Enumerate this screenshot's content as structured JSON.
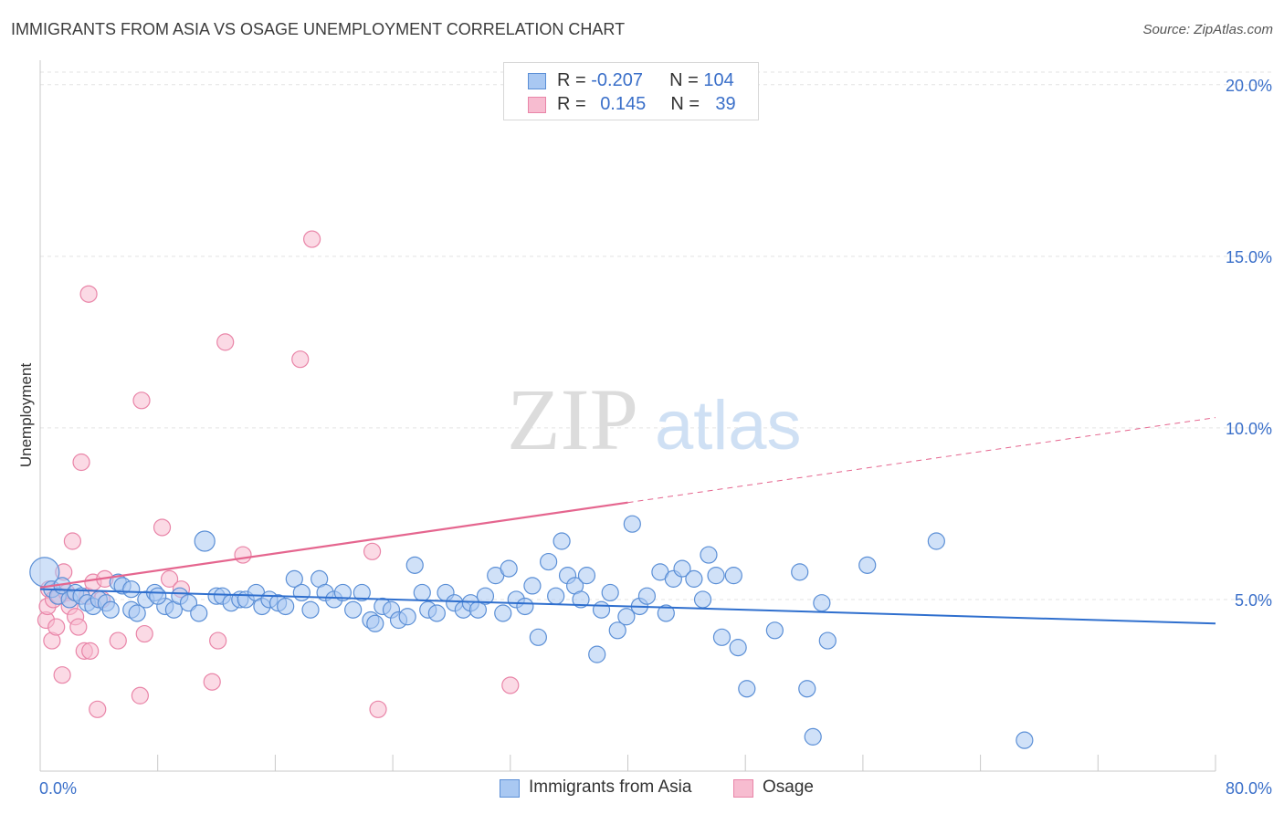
{
  "title": "IMMIGRANTS FROM ASIA VS OSAGE UNEMPLOYMENT CORRELATION CHART",
  "source": "Source: ZipAtlas.com",
  "watermark": {
    "zip": "ZIP",
    "atlas": "atlas"
  },
  "legend": {
    "rows": [
      {
        "r_label": "R = ",
        "r_value": "-0.207",
        "n_label": "N = ",
        "n_value": "104"
      },
      {
        "r_label": "R = ",
        "r_value": "0.145",
        "n_label": "N = ",
        "n_value": "39"
      }
    ]
  },
  "colors": {
    "blue_fill": "#a9c8f2",
    "blue_stroke": "#5b8fd6",
    "blue_line": "#2f6fce",
    "pink_fill": "#f7bcd0",
    "pink_stroke": "#e985a8",
    "pink_line": "#e5668f",
    "axis_label": "#3a6fc9",
    "grid": "#e3e3e3"
  },
  "chart_data": {
    "type": "scatter",
    "title": "IMMIGRANTS FROM ASIA VS OSAGE UNEMPLOYMENT CORRELATION CHART",
    "xlabel": "",
    "ylabel": "Unemployment",
    "xlim": [
      0,
      80
    ],
    "ylim": [
      0,
      20.5
    ],
    "x_tick_labels": [
      "0.0%",
      "80.0%"
    ],
    "y_ticks": [
      5,
      10,
      15,
      20
    ],
    "y_tick_labels": [
      "5.0%",
      "10.0%",
      "15.0%",
      "20.0%"
    ],
    "grid": true,
    "series": [
      {
        "name": "Immigrants from Asia",
        "color": "blue",
        "r": -0.207,
        "n": 104,
        "trend": {
          "x0": 0,
          "y0": 5.3,
          "x1": 80,
          "y1": 4.3
        },
        "points": [
          [
            0.3,
            5.8
          ],
          [
            0.8,
            5.3
          ],
          [
            1.2,
            5.1
          ],
          [
            1.5,
            5.4
          ],
          [
            2.0,
            5.0
          ],
          [
            2.4,
            5.2
          ],
          [
            2.8,
            5.1
          ],
          [
            3.2,
            4.9
          ],
          [
            3.6,
            4.8
          ],
          [
            4.0,
            5.0
          ],
          [
            4.5,
            4.9
          ],
          [
            4.8,
            4.7
          ],
          [
            5.3,
            5.5
          ],
          [
            5.6,
            5.4
          ],
          [
            6.2,
            4.7
          ],
          [
            6.6,
            4.6
          ],
          [
            7.2,
            5.0
          ],
          [
            7.8,
            5.2
          ],
          [
            8.5,
            4.8
          ],
          [
            9.1,
            4.7
          ],
          [
            9.5,
            5.1
          ],
          [
            10.1,
            4.9
          ],
          [
            10.8,
            4.6
          ],
          [
            11.2,
            6.7
          ],
          [
            12.0,
            5.1
          ],
          [
            12.4,
            5.1
          ],
          [
            13.0,
            4.9
          ],
          [
            13.6,
            5.0
          ],
          [
            14.0,
            5.0
          ],
          [
            14.7,
            5.2
          ],
          [
            15.1,
            4.8
          ],
          [
            15.6,
            5.0
          ],
          [
            16.2,
            4.9
          ],
          [
            16.7,
            4.8
          ],
          [
            17.3,
            5.6
          ],
          [
            17.8,
            5.2
          ],
          [
            18.4,
            4.7
          ],
          [
            19.0,
            5.6
          ],
          [
            19.4,
            5.2
          ],
          [
            20.0,
            5.0
          ],
          [
            20.6,
            5.2
          ],
          [
            21.3,
            4.7
          ],
          [
            21.9,
            5.2
          ],
          [
            22.5,
            4.4
          ],
          [
            22.8,
            4.3
          ],
          [
            23.3,
            4.8
          ],
          [
            23.9,
            4.7
          ],
          [
            24.4,
            4.4
          ],
          [
            25.0,
            4.5
          ],
          [
            25.5,
            6.0
          ],
          [
            26.0,
            5.2
          ],
          [
            26.4,
            4.7
          ],
          [
            27.0,
            4.6
          ],
          [
            27.6,
            5.2
          ],
          [
            28.2,
            4.9
          ],
          [
            28.8,
            4.7
          ],
          [
            29.3,
            4.9
          ],
          [
            29.8,
            4.7
          ],
          [
            30.3,
            5.1
          ],
          [
            31.0,
            5.7
          ],
          [
            31.5,
            4.6
          ],
          [
            31.9,
            5.9
          ],
          [
            32.4,
            5.0
          ],
          [
            33.0,
            4.8
          ],
          [
            33.5,
            5.4
          ],
          [
            33.9,
            3.9
          ],
          [
            34.6,
            6.1
          ],
          [
            35.1,
            5.1
          ],
          [
            35.5,
            6.7
          ],
          [
            35.9,
            5.7
          ],
          [
            36.4,
            5.4
          ],
          [
            36.8,
            5.0
          ],
          [
            37.2,
            5.7
          ],
          [
            37.9,
            3.4
          ],
          [
            38.2,
            4.7
          ],
          [
            38.8,
            5.2
          ],
          [
            39.3,
            4.1
          ],
          [
            39.9,
            4.5
          ],
          [
            40.3,
            7.2
          ],
          [
            40.8,
            4.8
          ],
          [
            41.3,
            5.1
          ],
          [
            42.2,
            5.8
          ],
          [
            42.6,
            4.6
          ],
          [
            43.1,
            5.6
          ],
          [
            43.7,
            5.9
          ],
          [
            44.5,
            5.6
          ],
          [
            45.1,
            5.0
          ],
          [
            45.5,
            6.3
          ],
          [
            46.0,
            5.7
          ],
          [
            46.4,
            3.9
          ],
          [
            47.2,
            5.7
          ],
          [
            47.5,
            3.6
          ],
          [
            48.1,
            2.4
          ],
          [
            50.0,
            4.1
          ],
          [
            51.7,
            5.8
          ],
          [
            52.2,
            2.4
          ],
          [
            52.6,
            1.0
          ],
          [
            53.2,
            4.9
          ],
          [
            53.6,
            3.8
          ],
          [
            56.3,
            6.0
          ],
          [
            61.0,
            6.7
          ],
          [
            67.0,
            0.9
          ],
          [
            6.2,
            5.3
          ],
          [
            8.0,
            5.1
          ]
        ]
      },
      {
        "name": "Osage",
        "color": "pink",
        "r": 0.145,
        "n": 39,
        "trend": {
          "x0": 0,
          "y0": 5.35,
          "x1": 80,
          "y1": 10.3,
          "solid_until": 40
        },
        "points": [
          [
            0.4,
            4.4
          ],
          [
            0.5,
            4.8
          ],
          [
            0.6,
            5.3
          ],
          [
            0.8,
            3.8
          ],
          [
            0.9,
            5.0
          ],
          [
            1.1,
            4.2
          ],
          [
            1.3,
            5.1
          ],
          [
            1.5,
            2.8
          ],
          [
            1.6,
            5.8
          ],
          [
            1.8,
            5.2
          ],
          [
            2.0,
            4.8
          ],
          [
            2.2,
            6.7
          ],
          [
            2.4,
            4.5
          ],
          [
            2.6,
            4.2
          ],
          [
            2.8,
            9.0
          ],
          [
            3.0,
            3.5
          ],
          [
            3.2,
            5.1
          ],
          [
            3.3,
            13.9
          ],
          [
            3.4,
            3.5
          ],
          [
            3.6,
            5.5
          ],
          [
            3.9,
            1.8
          ],
          [
            4.2,
            5.0
          ],
          [
            4.4,
            5.6
          ],
          [
            5.3,
            3.8
          ],
          [
            6.8,
            2.2
          ],
          [
            6.9,
            10.8
          ],
          [
            7.1,
            4.0
          ],
          [
            8.3,
            7.1
          ],
          [
            8.8,
            5.6
          ],
          [
            9.6,
            5.3
          ],
          [
            11.7,
            2.6
          ],
          [
            12.1,
            3.8
          ],
          [
            12.6,
            12.5
          ],
          [
            13.8,
            6.3
          ],
          [
            17.7,
            12.0
          ],
          [
            18.5,
            15.5
          ],
          [
            22.6,
            6.4
          ],
          [
            23.0,
            1.8
          ],
          [
            32.0,
            2.5
          ]
        ]
      }
    ]
  },
  "bottom_legend": {
    "series1": "Immigrants from Asia",
    "series2": "Osage"
  }
}
